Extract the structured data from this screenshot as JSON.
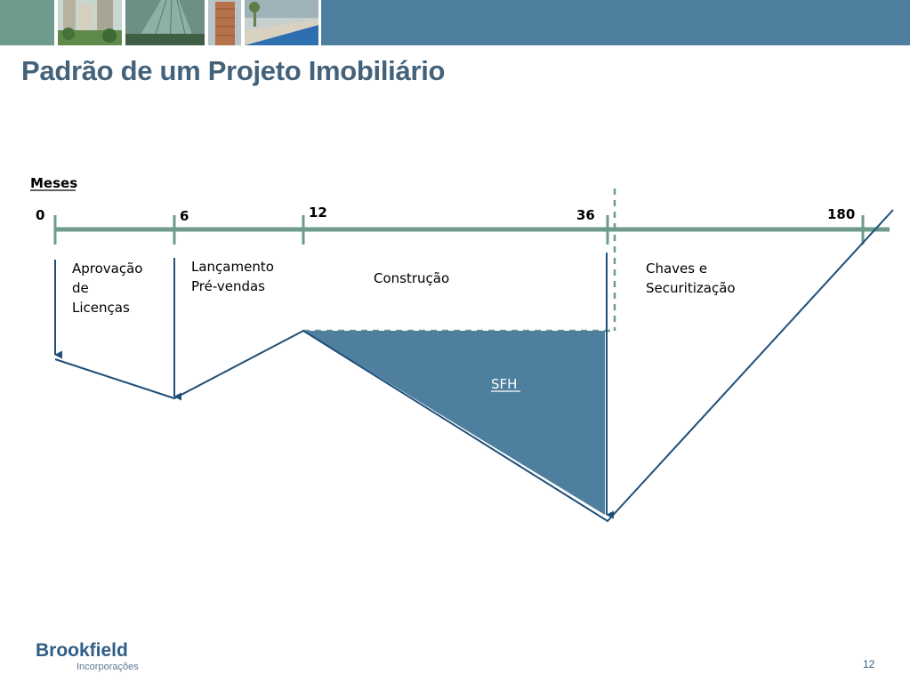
{
  "header": {
    "title": "Padrão de um Projeto Imobiliário",
    "photos": [
      "photo-towers-garden",
      "photo-glass-facade",
      "photo-residential-tower",
      "photo-pool-deck"
    ]
  },
  "diagram": {
    "axis_title": "Meses",
    "months": [
      "0",
      "6",
      "12",
      "36",
      "180"
    ],
    "phases": {
      "aprovacao": [
        "Aprovação",
        "de",
        "Licenças"
      ],
      "lancamento": [
        "Lançamento",
        "Pré-vendas"
      ],
      "construcao": "Construção",
      "chaves": [
        "Chaves e",
        "Securitização"
      ]
    },
    "sfh_label": "SFH",
    "colors": {
      "axis": "#6e9b8c",
      "curve": "#1f4e79",
      "sfh_fill": "#4e7f9e",
      "dashed": "#6e9b8c"
    }
  },
  "footer": {
    "brand": "Brookfield",
    "brand_sub": "Incorporações",
    "page_number": "12"
  }
}
